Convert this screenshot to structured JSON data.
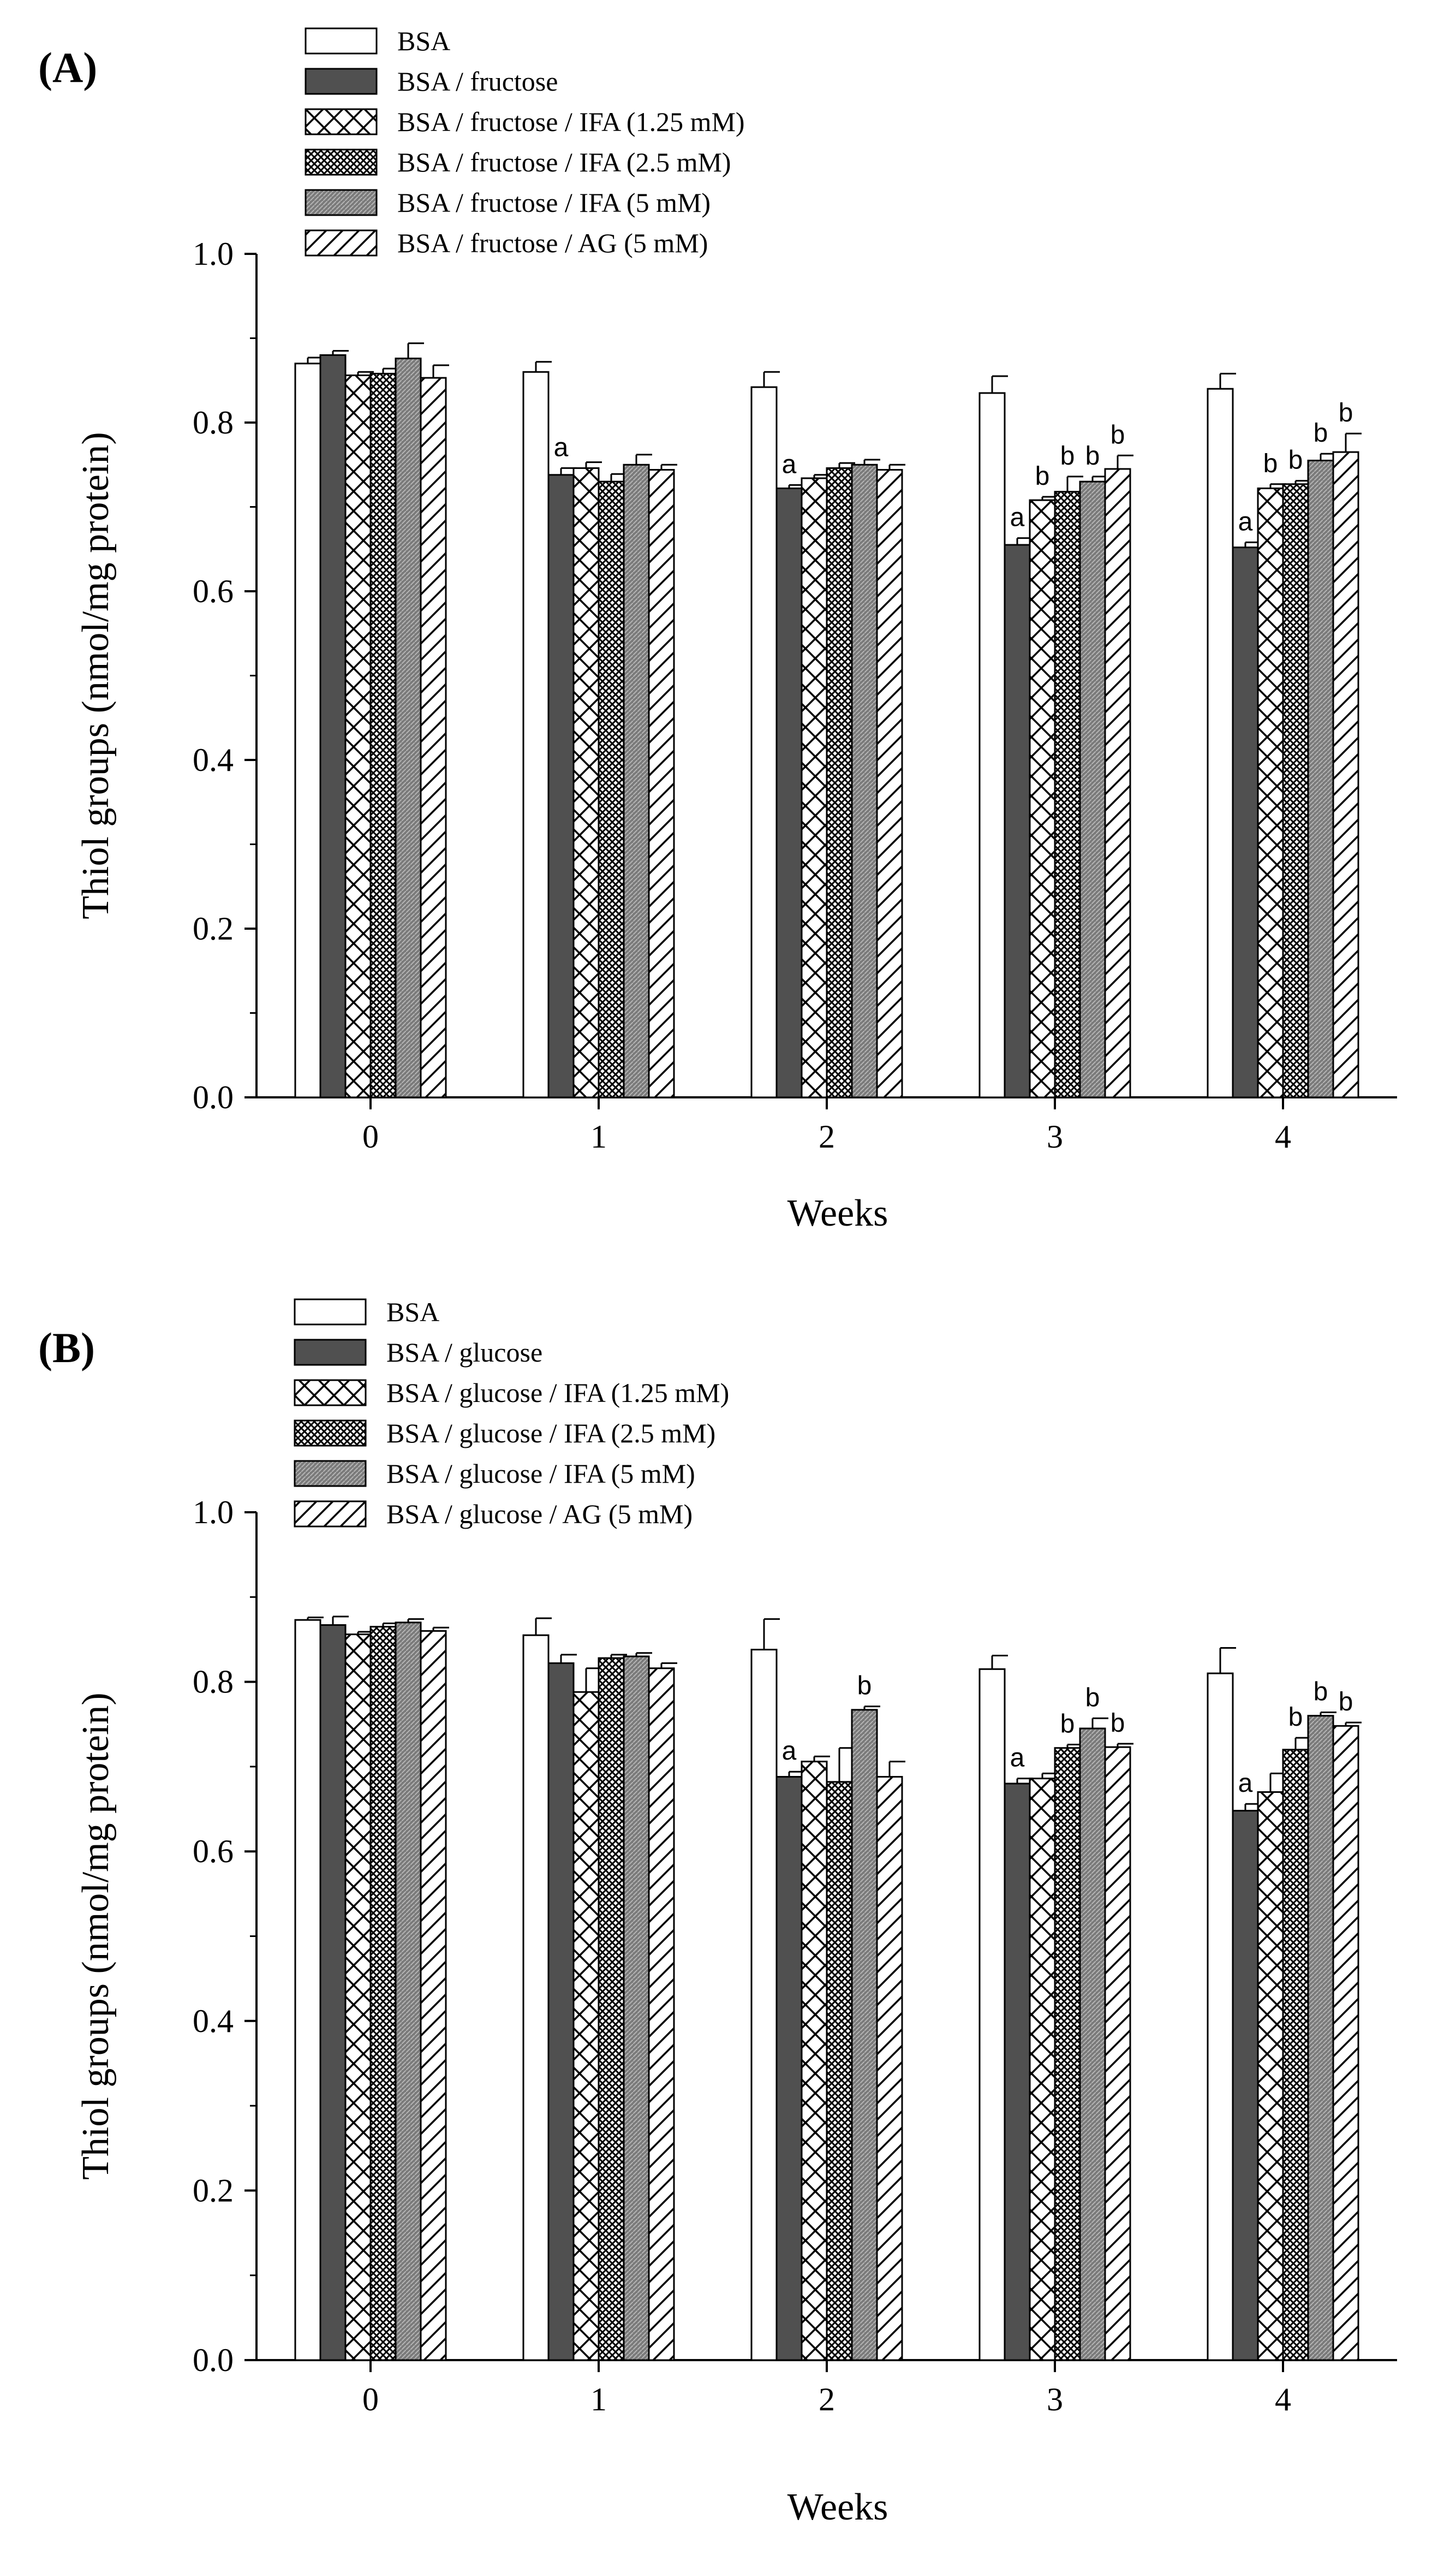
{
  "figure": {
    "colors": {
      "outline": "#000000",
      "bsa": "#ffffff",
      "sugar": "#505050",
      "ifa_high": "#8a8a8a"
    }
  },
  "chart_data": [
    {
      "type": "bar",
      "panel_label": "(A)",
      "xlabel": "Weeks",
      "ylabel": "Thiol groups (nmol/mg protein)",
      "categories": [
        "0",
        "1",
        "2",
        "3",
        "4"
      ],
      "ylim": [
        0,
        1.0
      ],
      "yticks": [
        "0.0",
        "0.2",
        "0.4",
        "0.6",
        "0.8",
        "1.0"
      ],
      "legend_position": "top-left",
      "grid": false,
      "series": [
        {
          "name": "BSA",
          "pattern": "white",
          "values": [
            0.87,
            0.86,
            0.842,
            0.835,
            0.84
          ],
          "errors": [
            0.007,
            0.012,
            0.018,
            0.02,
            0.018
          ],
          "labels": [
            "",
            "",
            "",
            "",
            ""
          ]
        },
        {
          "name": "BSA / fructose",
          "pattern": "dark",
          "values": [
            0.88,
            0.738,
            0.722,
            0.655,
            0.652
          ],
          "errors": [
            0.005,
            0.008,
            0.004,
            0.008,
            0.006
          ],
          "labels": [
            "",
            "a",
            "a",
            "a",
            "a"
          ]
        },
        {
          "name": "BSA / fructose / IFA (1.25 mM)",
          "pattern": "cross",
          "values": [
            0.856,
            0.746,
            0.734,
            0.708,
            0.722
          ],
          "errors": [
            0.004,
            0.007,
            0.004,
            0.004,
            0.005
          ],
          "labels": [
            "",
            "",
            "",
            "b",
            "b"
          ]
        },
        {
          "name": "BSA / fructose / IFA (2.5 mM)",
          "pattern": "checker",
          "values": [
            0.858,
            0.73,
            0.746,
            0.718,
            0.727
          ],
          "errors": [
            0.006,
            0.009,
            0.006,
            0.018,
            0.004
          ],
          "labels": [
            "",
            "",
            "",
            "b",
            "b"
          ]
        },
        {
          "name": "BSA / fructose / IFA (5 mM)",
          "pattern": "graydense",
          "values": [
            0.876,
            0.75,
            0.75,
            0.73,
            0.755
          ],
          "errors": [
            0.018,
            0.012,
            0.006,
            0.006,
            0.008
          ],
          "labels": [
            "",
            "",
            "",
            "b",
            "b"
          ]
        },
        {
          "name": "BSA / fructose / AG (5 mM)",
          "pattern": "diag",
          "values": [
            0.853,
            0.744,
            0.744,
            0.745,
            0.765
          ],
          "errors": [
            0.015,
            0.006,
            0.006,
            0.016,
            0.022
          ],
          "labels": [
            "",
            "",
            "",
            "b",
            "b"
          ]
        }
      ]
    },
    {
      "type": "bar",
      "panel_label": "(B)",
      "xlabel": "Weeks",
      "ylabel": "Thiol groups (nmol/mg protein)",
      "categories": [
        "0",
        "1",
        "2",
        "3",
        "4"
      ],
      "ylim": [
        0,
        1.0
      ],
      "yticks": [
        "0.0",
        "0.2",
        "0.4",
        "0.6",
        "0.8",
        "1.0"
      ],
      "legend_position": "top-left",
      "grid": false,
      "series": [
        {
          "name": "BSA",
          "pattern": "white",
          "values": [
            0.873,
            0.855,
            0.838,
            0.815,
            0.81
          ],
          "errors": [
            0.003,
            0.02,
            0.036,
            0.016,
            0.03
          ],
          "labels": [
            "",
            "",
            "",
            "",
            ""
          ]
        },
        {
          "name": "BSA / glucose",
          "pattern": "dark",
          "values": [
            0.867,
            0.822,
            0.688,
            0.68,
            0.648
          ],
          "errors": [
            0.01,
            0.01,
            0.006,
            0.006,
            0.008
          ],
          "labels": [
            "",
            "",
            "a",
            "a",
            "a"
          ]
        },
        {
          "name": "BSA / glucose / IFA (1.25 mM)",
          "pattern": "cross",
          "values": [
            0.856,
            0.788,
            0.706,
            0.686,
            0.67
          ],
          "errors": [
            0.003,
            0.028,
            0.006,
            0.006,
            0.022
          ],
          "labels": [
            "",
            "",
            "",
            "",
            ""
          ]
        },
        {
          "name": "BSA / glucose / IFA (2.5 mM)",
          "pattern": "checker",
          "values": [
            0.865,
            0.828,
            0.682,
            0.722,
            0.72
          ],
          "errors": [
            0.004,
            0.004,
            0.04,
            0.004,
            0.014
          ],
          "labels": [
            "",
            "",
            "",
            "b",
            "b"
          ]
        },
        {
          "name": "BSA / glucose / IFA (5 mM)",
          "pattern": "graydense",
          "values": [
            0.87,
            0.83,
            0.767,
            0.745,
            0.76
          ],
          "errors": [
            0.004,
            0.004,
            0.004,
            0.012,
            0.004
          ],
          "labels": [
            "",
            "",
            "b",
            "b",
            "b"
          ]
        },
        {
          "name": "BSA / glucose / AG (5 mM)",
          "pattern": "diag",
          "values": [
            0.86,
            0.816,
            0.688,
            0.723,
            0.748
          ],
          "errors": [
            0.004,
            0.006,
            0.018,
            0.004,
            0.004
          ],
          "labels": [
            "",
            "",
            "",
            "b",
            "b"
          ]
        }
      ]
    }
  ]
}
